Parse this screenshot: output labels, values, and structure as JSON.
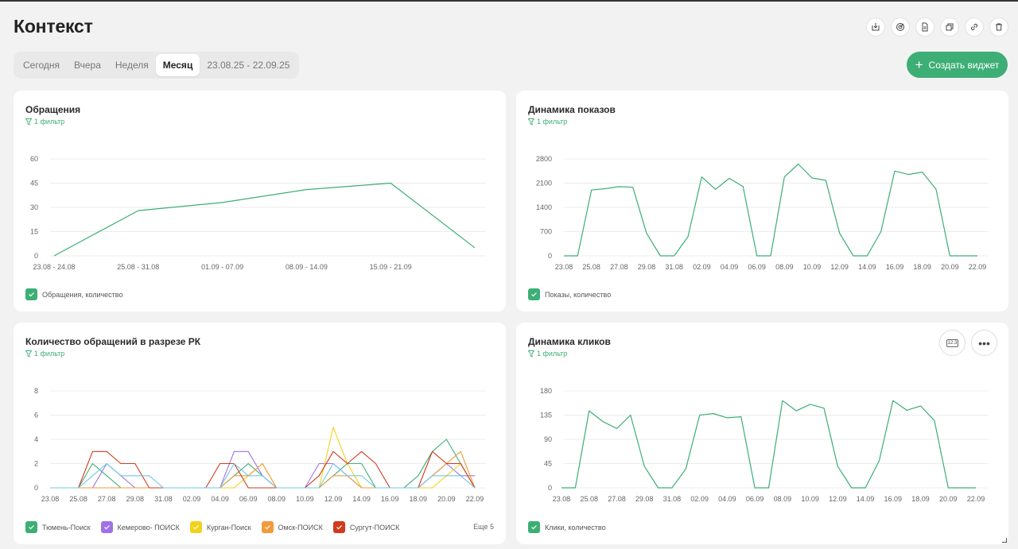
{
  "page": {
    "title": "Контекст"
  },
  "toolbar": {
    "icons": [
      "download-icon",
      "target-icon",
      "document-icon",
      "copy-icon",
      "link-icon",
      "trash-icon"
    ]
  },
  "period_tabs": [
    {
      "label": "Сегодня",
      "active": false
    },
    {
      "label": "Вчера",
      "active": false
    },
    {
      "label": "Неделя",
      "active": false
    },
    {
      "label": "Месяц",
      "active": true
    },
    {
      "label": "23.08.25 - 22.09.25",
      "active": false
    }
  ],
  "create_button": {
    "label": "Создать виджет",
    "color": "#3dae75"
  },
  "cards": {
    "appeals": {
      "title": "Обращения",
      "filter": "1 фильтр",
      "legend": [
        "Обращения, количество"
      ]
    },
    "impressions": {
      "title": "Динамика показов",
      "filter": "1 фильтр",
      "legend": [
        "Показы, количество"
      ]
    },
    "by_campaign": {
      "title": "Количество обращений в разрезе РК",
      "filter": "1 фильтр",
      "legend": [
        "Тюмень-Поиск",
        "Кемерово- ПОИСК",
        "Курган-Поиск",
        "Омск-ПОИСК",
        "Сургут-ПОИСК"
      ],
      "more": "Еще 5"
    },
    "clicks": {
      "title": "Динамика кликов",
      "filter": "1 фильтр",
      "legend": [
        "Клики, количество"
      ]
    }
  },
  "chart_data": [
    {
      "type": "line",
      "title": "Обращения",
      "x": [
        "23.08 - 24.08",
        "25.08 - 31.08",
        "01.09 - 07.09",
        "08.09 - 14.09",
        "15.09 - 21.09",
        ""
      ],
      "series": [
        {
          "name": "Обращения, количество",
          "values": [
            0,
            28,
            33,
            41,
            45,
            5
          ],
          "color": "#3dae75"
        }
      ],
      "yticks": [
        0,
        15,
        30,
        45,
        60
      ],
      "ylim": [
        0,
        60
      ],
      "grid": true
    },
    {
      "type": "line",
      "title": "Динамика показов",
      "xtick_labels": [
        "23.08",
        "25.08",
        "27.08",
        "29.08",
        "31.08",
        "02.09",
        "04.09",
        "06.09",
        "08.09",
        "10.09",
        "12.09",
        "14.09",
        "16.09",
        "18.09",
        "20.09",
        "22.09"
      ],
      "series": [
        {
          "name": "Показы, количество",
          "color": "#3dae75",
          "values": [
            0,
            0,
            1900,
            1940,
            2000,
            1980,
            650,
            0,
            0,
            550,
            2280,
            1920,
            2240,
            2000,
            0,
            0,
            2280,
            2650,
            2250,
            2180,
            650,
            0,
            0,
            700,
            2450,
            2350,
            2420,
            1920,
            0,
            0,
            0
          ]
        }
      ],
      "yticks": [
        0,
        700,
        1400,
        2100,
        2800
      ],
      "ylim": [
        0,
        2800
      ],
      "grid": true
    },
    {
      "type": "line",
      "title": "Количество обращений в разрезе РК",
      "xtick_labels": [
        "23.08",
        "25.08",
        "27.08",
        "29.08",
        "31.08",
        "02.09",
        "04.09",
        "06.09",
        "08.09",
        "10.09",
        "12.09",
        "14.09",
        "16.09",
        "18.09",
        "20.09",
        "22.09"
      ],
      "series": [
        {
          "name": "Тюмень-Поиск",
          "color": "#3dae75",
          "values": [
            0,
            0,
            0,
            2,
            1,
            0,
            0,
            0,
            0,
            0,
            0,
            0,
            0,
            1,
            2,
            1,
            0,
            0,
            0,
            0,
            1,
            2,
            2,
            0,
            0,
            0,
            1,
            3,
            4,
            2,
            0
          ]
        },
        {
          "name": "Кемерово- ПОИСК",
          "color": "#a072e8",
          "values": [
            0,
            0,
            0,
            0,
            2,
            1,
            0,
            0,
            0,
            0,
            0,
            0,
            0,
            3,
            3,
            1,
            0,
            0,
            0,
            2,
            2,
            1,
            0,
            0,
            0,
            0,
            0,
            1,
            2,
            1,
            1
          ]
        },
        {
          "name": "Курган-Поиск",
          "color": "#f2d21b",
          "values": [
            0,
            0,
            0,
            0,
            0,
            0,
            0,
            0,
            0,
            0,
            0,
            0,
            0,
            0,
            1,
            2,
            0,
            0,
            0,
            0,
            5,
            2,
            0,
            0,
            0,
            0,
            0,
            0,
            1,
            2,
            0
          ]
        },
        {
          "name": "Омск-ПОИСК",
          "color": "#f29a3a",
          "values": [
            0,
            0,
            0,
            0,
            0,
            0,
            0,
            0,
            0,
            0,
            0,
            0,
            0,
            1,
            1,
            2,
            0,
            0,
            0,
            0,
            1,
            1,
            0,
            0,
            0,
            0,
            0,
            1,
            2,
            3,
            0
          ]
        },
        {
          "name": "Сургут-ПОИСК",
          "color": "#d13a1e",
          "values": [
            0,
            0,
            0,
            3,
            3,
            2,
            2,
            0,
            0,
            0,
            0,
            0,
            2,
            2,
            0,
            0,
            0,
            0,
            0,
            1,
            3,
            2,
            3,
            2,
            0,
            0,
            0,
            3,
            2,
            2,
            0
          ]
        },
        {
          "name": "",
          "color": "#6fc7e8",
          "values": [
            0,
            0,
            0,
            1,
            2,
            1,
            1,
            1,
            0,
            0,
            0,
            0,
            0,
            2,
            1,
            1,
            0,
            0,
            0,
            0,
            2,
            1,
            1,
            0,
            0,
            0,
            0,
            1,
            1,
            1,
            0
          ]
        }
      ],
      "yticks": [
        0,
        2,
        4,
        6,
        8
      ],
      "ylim": [
        0,
        8
      ],
      "grid": true
    },
    {
      "type": "line",
      "title": "Динамика кликов",
      "xtick_labels": [
        "23.08",
        "25.08",
        "27.08",
        "29.08",
        "31.08",
        "02.09",
        "04.09",
        "06.09",
        "08.09",
        "10.09",
        "12.09",
        "14.09",
        "16.09",
        "18.09",
        "20.09",
        "22.09"
      ],
      "series": [
        {
          "name": "Клики, количество",
          "color": "#3dae75",
          "values": [
            0,
            0,
            143,
            123,
            110,
            135,
            40,
            0,
            0,
            35,
            135,
            138,
            130,
            132,
            0,
            0,
            162,
            143,
            155,
            148,
            40,
            0,
            0,
            50,
            162,
            144,
            152,
            125,
            0,
            0,
            0
          ]
        }
      ],
      "yticks": [
        0,
        45,
        90,
        135,
        180
      ],
      "ylim": [
        0,
        180
      ],
      "grid": true
    }
  ]
}
